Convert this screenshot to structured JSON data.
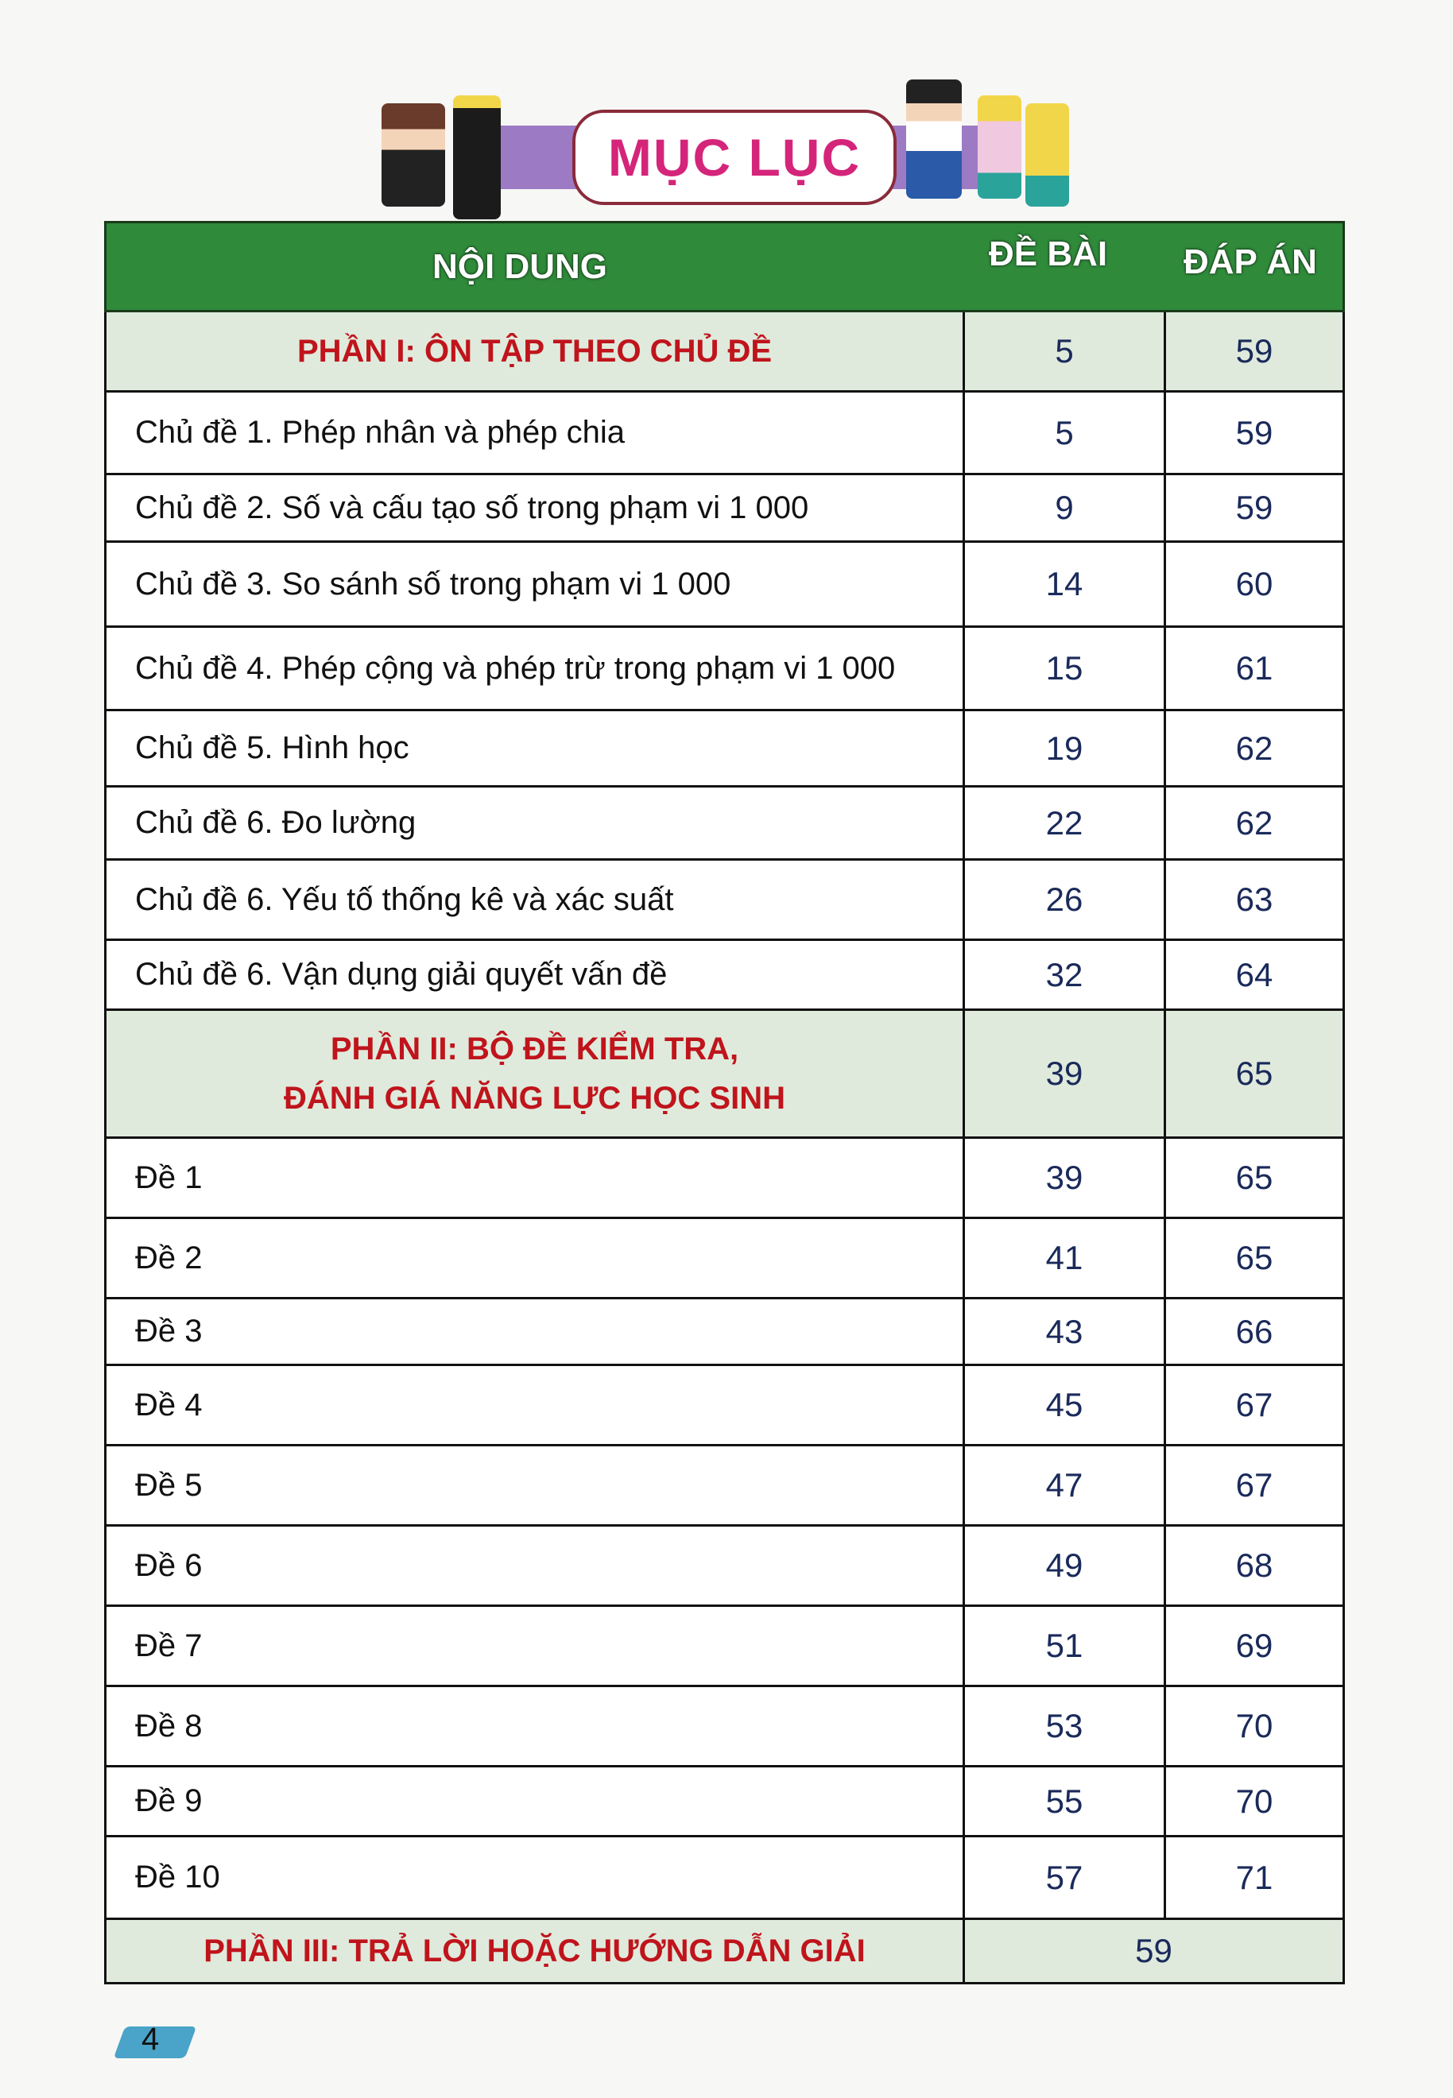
{
  "title": "MỤC LỤC",
  "columns": {
    "content": "NỘI DUNG",
    "exercise": "ĐỀ BÀI",
    "answer": "ĐÁP ÁN"
  },
  "rows": [
    {
      "type": "section",
      "label": "PHẦN I: ÔN TẬP THEO CHỦ ĐỀ",
      "exercise": "5",
      "answer": "59"
    },
    {
      "type": "item",
      "label": "Chủ đề 1. Phép nhân và phép chia",
      "exercise": "5",
      "answer": "59"
    },
    {
      "type": "item",
      "label": "Chủ đề 2. Số và cấu tạo số trong phạm vi 1 000",
      "exercise": "9",
      "answer": "59"
    },
    {
      "type": "item",
      "label": "Chủ đề 3. So sánh số trong phạm vi 1 000",
      "exercise": "14",
      "answer": "60"
    },
    {
      "type": "item",
      "label": "Chủ đề 4. Phép cộng và phép trừ trong phạm vi 1 000",
      "exercise": "15",
      "answer": "61"
    },
    {
      "type": "item",
      "label": "Chủ đề 5. Hình học",
      "exercise": "19",
      "answer": "62"
    },
    {
      "type": "item",
      "label": "Chủ đề 6. Đo lường",
      "exercise": "22",
      "answer": "62"
    },
    {
      "type": "item",
      "label": "Chủ đề 6. Yếu tố thống kê và xác suất",
      "exercise": "26",
      "answer": "63"
    },
    {
      "type": "item",
      "label": "Chủ đề 6. Vận dụng giải quyết vấn đề",
      "exercise": "32",
      "answer": "64"
    },
    {
      "type": "section",
      "label": "PHẦN II: BỘ ĐỀ KIỂM TRA,\nĐÁNH GIÁ NĂNG LỰC HỌC SINH",
      "exercise": "39",
      "answer": "65"
    },
    {
      "type": "item",
      "label": "Đề 1",
      "exercise": "39",
      "answer": "65"
    },
    {
      "type": "item",
      "label": "Đề 2",
      "exercise": "41",
      "answer": "65"
    },
    {
      "type": "item",
      "label": "Đề 3",
      "exercise": "43",
      "answer": "66"
    },
    {
      "type": "item",
      "label": "Đề 4",
      "exercise": "45",
      "answer": "67"
    },
    {
      "type": "item",
      "label": "Đề 5",
      "exercise": "47",
      "answer": "67"
    },
    {
      "type": "item",
      "label": "Đề 6",
      "exercise": "49",
      "answer": "68"
    },
    {
      "type": "item",
      "label": "Đề 7",
      "exercise": "51",
      "answer": "69"
    },
    {
      "type": "item",
      "label": "Đề 8",
      "exercise": "53",
      "answer": "70"
    },
    {
      "type": "item",
      "label": "Đề 9",
      "exercise": "55",
      "answer": "70"
    },
    {
      "type": "item",
      "label": "Đề 10",
      "exercise": "57",
      "answer": "71"
    },
    {
      "type": "section-merged",
      "label": "PHẦN III: TRẢ LỜI HOẶC HƯỚNG DẪN GIẢI",
      "page": "59"
    }
  ],
  "page_number": "4",
  "colors": {
    "header_green": "#2f8a3a",
    "section_red": "#c0141c",
    "title_pink": "#d4257a",
    "ribbon_purple": "#9c7bc4"
  }
}
